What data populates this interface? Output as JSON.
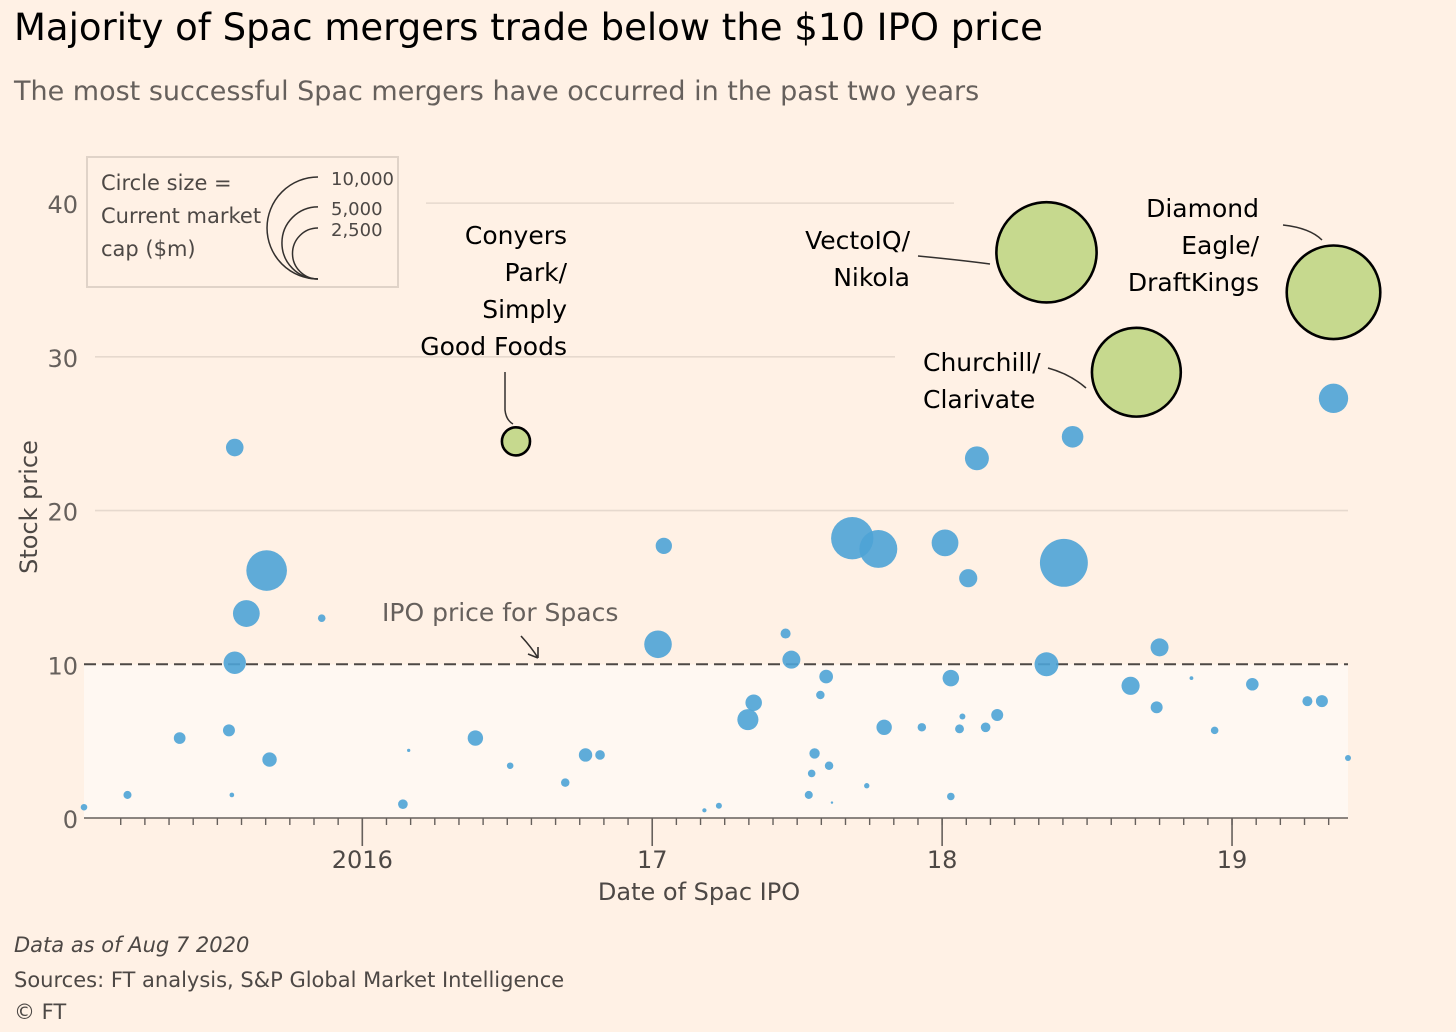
{
  "title": "Majority of Spac mergers trade below the $10 IPO price",
  "subtitle": "The most successful Spac mergers have occurred in the past two years",
  "legend": {
    "line1": "Circle size =",
    "line2": "Current market",
    "line3": "cap ($m)",
    "sizes": [
      {
        "label": "10,000",
        "value": 10000
      },
      {
        "label": "5,000",
        "value": 5000
      },
      {
        "label": "2,500",
        "value": 2500
      }
    ]
  },
  "reference_line": {
    "value": 10,
    "label": "IPO price for Spacs"
  },
  "footer": {
    "note": "Data as of Aug 7 2020",
    "sources": "Sources: FT analysis, S&P Global Market Intelligence",
    "copyright": "© FT"
  },
  "colors": {
    "background": "#fff1e5",
    "bubble": "#4ea3d6",
    "highlight": "#c6d98e",
    "below_ipo_band": "#fff8f2"
  },
  "chart_data": {
    "type": "scatter",
    "xlabel": "Date of Spac IPO",
    "ylabel": "Stock price",
    "xlim": [
      2015.04,
      2019.4
    ],
    "ylim": [
      0,
      43
    ],
    "x_ticks": [
      {
        "value": 2016,
        "label": "2016"
      },
      {
        "value": 2017,
        "label": "17"
      },
      {
        "value": 2018,
        "label": "18"
      },
      {
        "value": 2019,
        "label": "19"
      }
    ],
    "y_ticks": [
      {
        "value": 0,
        "label": "0"
      },
      {
        "value": 10,
        "label": "10"
      },
      {
        "value": 20,
        "label": "20"
      },
      {
        "value": 30,
        "label": "30"
      },
      {
        "value": 40,
        "label": "40"
      }
    ],
    "highlighted": [
      {
        "name": "Conyers Park/ Simply Good Foods",
        "lines": [
          "Conyers",
          "Park/",
          "Simply",
          "Good Foods"
        ],
        "x": 2016.53,
        "y": 24.5,
        "market_cap": 1100
      },
      {
        "name": "VectoIQ/ Nikola",
        "lines": [
          "VectoIQ/",
          "Nikola"
        ],
        "x": 2018.36,
        "y": 36.8,
        "market_cap": 14000
      },
      {
        "name": "Churchill/ Clarivate",
        "lines": [
          "Churchill/",
          "Clarivate"
        ],
        "x": 2018.67,
        "y": 29.0,
        "market_cap": 11000
      },
      {
        "name": "Diamond Eagle/ DraftKings",
        "lines": [
          "Diamond",
          "Eagle/",
          "DraftKings"
        ],
        "x": 2019.35,
        "y": 34.2,
        "market_cap": 12200
      }
    ],
    "points": [
      {
        "x": 2015.04,
        "y": 0.7,
        "market_cap": 60
      },
      {
        "x": 2015.19,
        "y": 1.5,
        "market_cap": 90
      },
      {
        "x": 2015.37,
        "y": 5.2,
        "market_cap": 190
      },
      {
        "x": 2015.54,
        "y": 5.7,
        "market_cap": 200
      },
      {
        "x": 2015.55,
        "y": 1.5,
        "market_cap": 30
      },
      {
        "x": 2015.56,
        "y": 24.1,
        "market_cap": 430
      },
      {
        "x": 2015.56,
        "y": 10.1,
        "market_cap": 700
      },
      {
        "x": 2015.6,
        "y": 13.3,
        "market_cap": 1000
      },
      {
        "x": 2015.67,
        "y": 16.1,
        "market_cap": 2300
      },
      {
        "x": 2015.68,
        "y": 3.8,
        "market_cap": 290
      },
      {
        "x": 2015.86,
        "y": 13.0,
        "market_cap": 80
      },
      {
        "x": 2016.14,
        "y": 0.9,
        "market_cap": 130
      },
      {
        "x": 2016.16,
        "y": 4.4,
        "market_cap": 15
      },
      {
        "x": 2016.39,
        "y": 5.2,
        "market_cap": 330
      },
      {
        "x": 2016.51,
        "y": 3.4,
        "market_cap": 60
      },
      {
        "x": 2016.7,
        "y": 2.3,
        "market_cap": 100
      },
      {
        "x": 2016.77,
        "y": 4.1,
        "market_cap": 250
      },
      {
        "x": 2016.82,
        "y": 4.1,
        "market_cap": 130
      },
      {
        "x": 2017.02,
        "y": 11.3,
        "market_cap": 1060
      },
      {
        "x": 2017.04,
        "y": 17.7,
        "market_cap": 370
      },
      {
        "x": 2017.18,
        "y": 0.5,
        "market_cap": 25
      },
      {
        "x": 2017.23,
        "y": 0.8,
        "market_cap": 50
      },
      {
        "x": 2017.33,
        "y": 6.4,
        "market_cap": 620
      },
      {
        "x": 2017.35,
        "y": 7.5,
        "market_cap": 380
      },
      {
        "x": 2017.46,
        "y": 12.0,
        "market_cap": 140
      },
      {
        "x": 2017.48,
        "y": 10.3,
        "market_cap": 450
      },
      {
        "x": 2017.54,
        "y": 1.5,
        "market_cap": 90
      },
      {
        "x": 2017.55,
        "y": 2.9,
        "market_cap": 80
      },
      {
        "x": 2017.56,
        "y": 4.2,
        "market_cap": 150
      },
      {
        "x": 2017.58,
        "y": 8.0,
        "market_cap": 100
      },
      {
        "x": 2017.6,
        "y": 9.2,
        "market_cap": 260
      },
      {
        "x": 2017.61,
        "y": 3.4,
        "market_cap": 100
      },
      {
        "x": 2017.62,
        "y": 1.0,
        "market_cap": 8
      },
      {
        "x": 2017.69,
        "y": 18.2,
        "market_cap": 2500
      },
      {
        "x": 2017.74,
        "y": 2.1,
        "market_cap": 40
      },
      {
        "x": 2017.78,
        "y": 17.5,
        "market_cap": 2000
      },
      {
        "x": 2017.8,
        "y": 5.9,
        "market_cap": 330
      },
      {
        "x": 2017.93,
        "y": 5.9,
        "market_cap": 100
      },
      {
        "x": 2018.01,
        "y": 17.9,
        "market_cap": 1000
      },
      {
        "x": 2018.03,
        "y": 9.1,
        "market_cap": 380
      },
      {
        "x": 2018.03,
        "y": 1.4,
        "market_cap": 80
      },
      {
        "x": 2018.06,
        "y": 5.8,
        "market_cap": 110
      },
      {
        "x": 2018.07,
        "y": 6.6,
        "market_cap": 50
      },
      {
        "x": 2018.09,
        "y": 15.6,
        "market_cap": 460
      },
      {
        "x": 2018.12,
        "y": 23.4,
        "market_cap": 800
      },
      {
        "x": 2018.15,
        "y": 5.9,
        "market_cap": 130
      },
      {
        "x": 2018.19,
        "y": 6.7,
        "market_cap": 200
      },
      {
        "x": 2018.36,
        "y": 10.0,
        "market_cap": 800
      },
      {
        "x": 2018.42,
        "y": 16.6,
        "market_cap": 3200
      },
      {
        "x": 2018.45,
        "y": 24.8,
        "market_cap": 650
      },
      {
        "x": 2018.65,
        "y": 8.6,
        "market_cap": 460
      },
      {
        "x": 2018.74,
        "y": 7.2,
        "market_cap": 200
      },
      {
        "x": 2018.75,
        "y": 11.1,
        "market_cap": 450
      },
      {
        "x": 2018.86,
        "y": 9.1,
        "market_cap": 20
      },
      {
        "x": 2018.94,
        "y": 5.7,
        "market_cap": 80
      },
      {
        "x": 2019.07,
        "y": 8.7,
        "market_cap": 220
      },
      {
        "x": 2019.26,
        "y": 7.6,
        "market_cap": 140
      },
      {
        "x": 2019.31,
        "y": 7.6,
        "market_cap": 200
      },
      {
        "x": 2019.35,
        "y": 27.3,
        "market_cap": 1200
      },
      {
        "x": 2019.4,
        "y": 3.9,
        "market_cap": 50
      }
    ]
  }
}
